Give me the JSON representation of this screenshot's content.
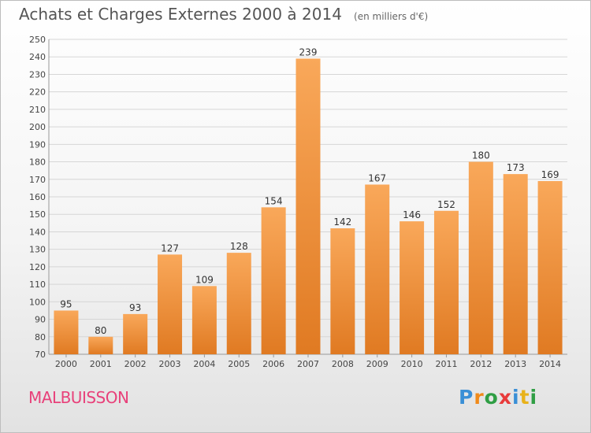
{
  "header": {
    "title": "Achats et Charges Externes 2000 à 2014",
    "subtitle": "(en milliers d'€)"
  },
  "footer": {
    "place": "MALBUISSON",
    "logo_text": "Proxiti",
    "logo_colors": [
      "#3a8fd6",
      "#f08a1a",
      "#2f9e44",
      "#e83b3b",
      "#3a8fd6",
      "#e8b21a",
      "#2f9e44"
    ]
  },
  "colors": {
    "bar_top": "#f9a85a",
    "bar_bottom": "#e07a22",
    "grid": "#d6d6d6",
    "axis_text": "#444444",
    "place": "#e8417a"
  },
  "chart_data": {
    "type": "bar",
    "title": "Achats et Charges Externes 2000 à 2014",
    "subtitle": "(en milliers d'€)",
    "categories": [
      "2000",
      "2001",
      "2002",
      "2003",
      "2004",
      "2005",
      "2006",
      "2007",
      "2008",
      "2009",
      "2010",
      "2011",
      "2012",
      "2013",
      "2014"
    ],
    "values": [
      95,
      80,
      93,
      127,
      109,
      128,
      154,
      239,
      142,
      167,
      146,
      152,
      180,
      173,
      169
    ],
    "ylim": [
      70,
      250
    ],
    "ytick_step": 10,
    "grid": true,
    "data_labels": true
  }
}
